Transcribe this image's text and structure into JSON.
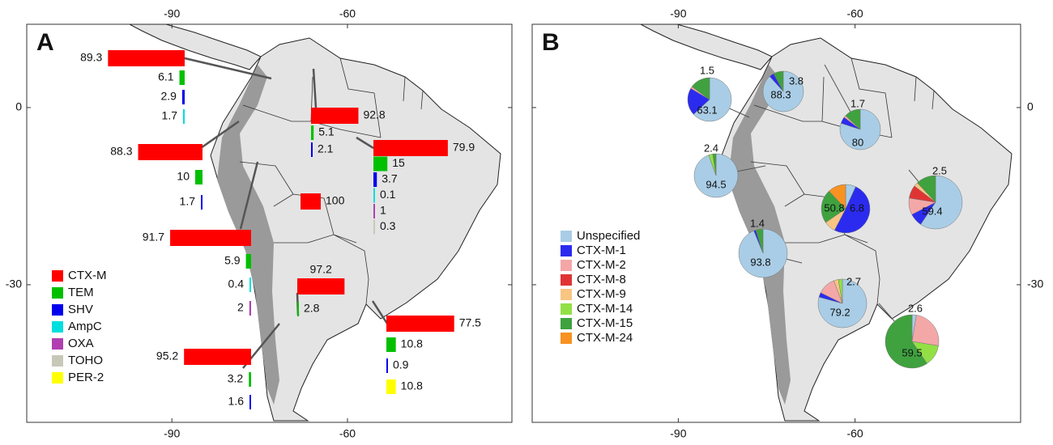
{
  "panels": [
    {
      "label": "A",
      "type": "bar",
      "xlim": [
        -114.8,
        -31.9
      ],
      "ylim": [
        -53.3,
        14.1
      ],
      "xticks": [
        -90,
        -60
      ],
      "yticks": [
        0,
        -30
      ],
      "legend": [
        {
          "name": "CTX-M",
          "color": "#ff0000"
        },
        {
          "name": "TEM",
          "color": "#00c000"
        },
        {
          "name": "SHV",
          "color": "#0000ee"
        },
        {
          "name": "AmpC",
          "color": "#00dede"
        },
        {
          "name": "OXA",
          "color": "#b040b0"
        },
        {
          "name": "TOHO",
          "color": "#c8c8b8"
        },
        {
          "name": "PER-2",
          "color": "#ffff00"
        }
      ],
      "sites": [
        {
          "values": [
            89.3,
            6.1,
            2.9,
            1.7,
            null,
            null,
            null
          ]
        },
        {
          "values": [
            92.8,
            5.1,
            2.1,
            null,
            null,
            null,
            null
          ]
        },
        {
          "values": [
            88.3,
            10,
            1.7,
            null,
            null,
            null,
            null
          ]
        },
        {
          "values": [
            79.9,
            15,
            3.7,
            0.1,
            1,
            0.3,
            null
          ]
        },
        {
          "values": [
            100,
            null,
            null,
            null,
            null,
            null,
            null
          ]
        },
        {
          "values": [
            91.7,
            5.9,
            null,
            0.4,
            2,
            null,
            null
          ]
        },
        {
          "values": [
            97.2,
            2.8,
            null,
            null,
            null,
            null,
            null
          ]
        },
        {
          "values": [
            77.5,
            10.8,
            0.9,
            null,
            null,
            null,
            10.8
          ]
        },
        {
          "values": [
            95.2,
            3.2,
            1.6,
            null,
            null,
            null,
            null
          ]
        }
      ]
    },
    {
      "label": "B",
      "type": "pie",
      "xlim": [
        -114.8,
        -31.9
      ],
      "ylim": [
        -53.3,
        14.1
      ],
      "xticks": [
        -90,
        -60
      ],
      "yticks": [
        0,
        -30
      ],
      "legend": [
        {
          "name": "Unspecified",
          "color": "#a9cde6"
        },
        {
          "name": "CTX-M-1",
          "color": "#2b2bf0"
        },
        {
          "name": "CTX-M-2",
          "color": "#f4a7a7"
        },
        {
          "name": "CTX-M-8",
          "color": "#e03434"
        },
        {
          "name": "CTX-M-9",
          "color": "#f8c583"
        },
        {
          "name": "CTX-M-14",
          "color": "#92e046"
        },
        {
          "name": "CTX-M-15",
          "color": "#3fa23f"
        },
        {
          "name": "CTX-M-24",
          "color": "#f89222"
        }
      ],
      "sites": [
        {
          "values": [
            63.1,
            20.4,
            1.5,
            null,
            null,
            null,
            15,
            null
          ]
        },
        {
          "values": [
            88.3,
            3.8,
            null,
            null,
            null,
            null,
            7.9,
            null
          ]
        },
        {
          "values": [
            80,
            5.3,
            1.7,
            null,
            null,
            null,
            13,
            null
          ]
        },
        {
          "values": [
            94.5,
            null,
            null,
            null,
            null,
            3.1,
            2.4,
            null
          ]
        },
        {
          "values": [
            6.8,
            50.8,
            null,
            null,
            7.8,
            null,
            22.6,
            12
          ]
        },
        {
          "values": [
            93.8,
            1.4,
            null,
            null,
            null,
            null,
            4.8,
            null
          ]
        },
        {
          "values": [
            59.4,
            8,
            10.1,
            8,
            2.5,
            null,
            12,
            null
          ]
        },
        {
          "values": [
            79.2,
            3.1,
            12,
            null,
            3,
            2.7,
            null,
            null
          ]
        },
        {
          "values": [
            2.6,
            null,
            25,
            null,
            null,
            12.9,
            59.5,
            null
          ]
        }
      ]
    }
  ]
}
